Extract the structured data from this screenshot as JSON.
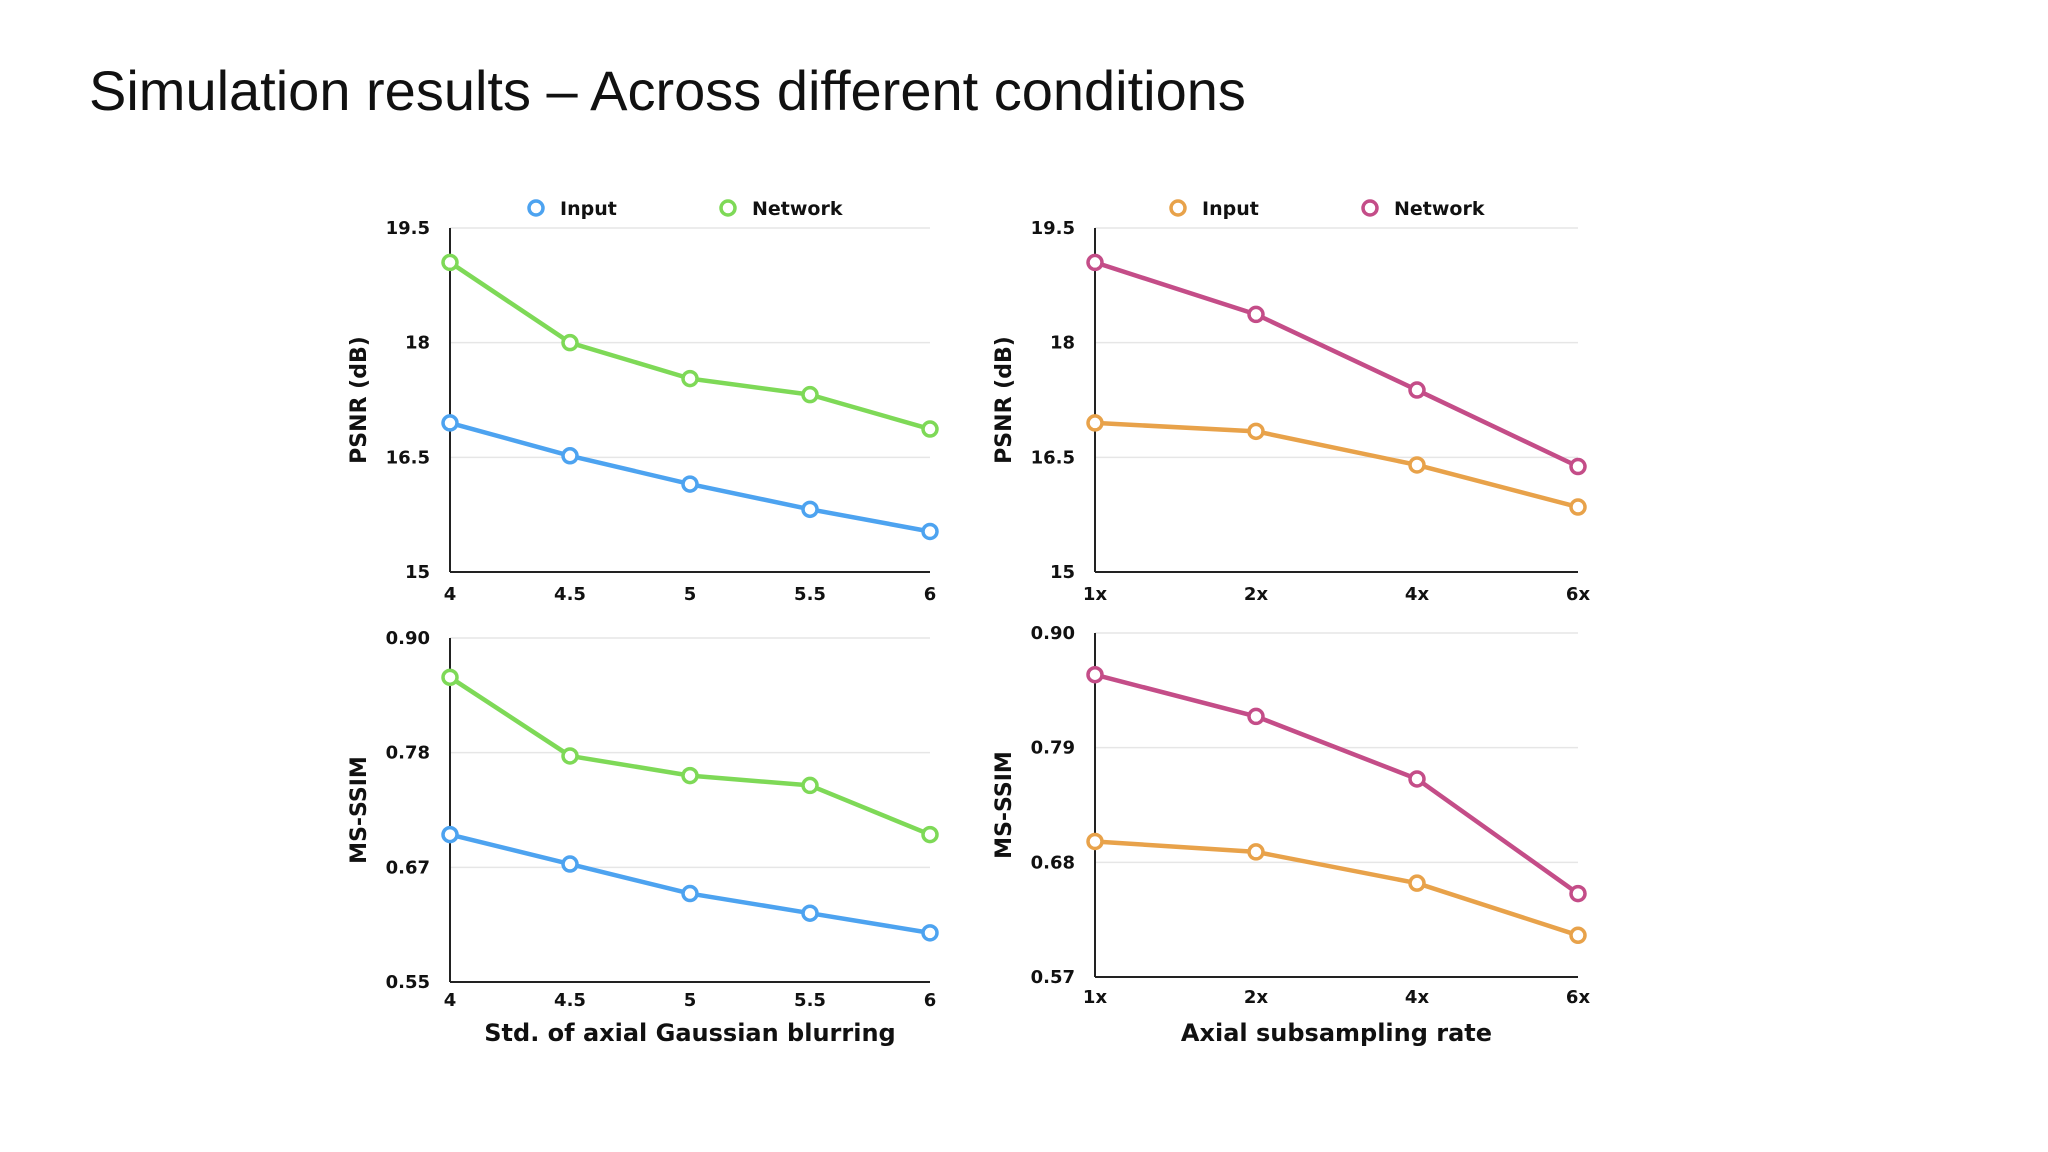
{
  "slide": {
    "title": "Simulation results – Across different conditions"
  },
  "chart_data": [
    {
      "type": "line",
      "id": "psnr-blur",
      "xlabel": "",
      "ylabel": "PSNR (dB)",
      "categories": [
        "4",
        "4.5",
        "5",
        "5.5",
        "6"
      ],
      "yticks": [
        "15",
        "16.5",
        "18",
        "19.5"
      ],
      "ylim": [
        15,
        19.5
      ],
      "grid": true,
      "legend": "top",
      "series": [
        {
          "name": "Input",
          "color": "#4da3f0",
          "values": [
            16.95,
            16.52,
            16.15,
            15.82,
            15.53
          ]
        },
        {
          "name": "Network",
          "color": "#7ed957",
          "values": [
            19.05,
            18.0,
            17.53,
            17.32,
            16.87
          ]
        }
      ]
    },
    {
      "type": "line",
      "id": "psnr-subsampling",
      "xlabel": "",
      "ylabel": "PSNR (dB)",
      "categories": [
        "1x",
        "2x",
        "4x",
        "6x"
      ],
      "yticks": [
        "15",
        "16.5",
        "18",
        "19.5"
      ],
      "ylim": [
        15,
        19.5
      ],
      "grid": true,
      "legend": "top",
      "series": [
        {
          "name": "Input",
          "color": "#e8a24a",
          "values": [
            16.95,
            16.84,
            16.4,
            15.85
          ]
        },
        {
          "name": "Network",
          "color": "#c44d88",
          "values": [
            19.05,
            18.37,
            17.38,
            16.38
          ]
        }
      ]
    },
    {
      "type": "line",
      "id": "msssim-blur",
      "xlabel": "Std. of axial Gaussian blurring",
      "ylabel": "MS-SSIM",
      "categories": [
        "4",
        "4.5",
        "5",
        "5.5",
        "6"
      ],
      "yticks": [
        "0.55",
        "0.67",
        "0.78",
        "0.90"
      ],
      "ylim": [
        0.55,
        0.9
      ],
      "grid": true,
      "series": [
        {
          "name": "Input",
          "color": "#4da3f0",
          "values": [
            0.7,
            0.67,
            0.64,
            0.62,
            0.6
          ]
        },
        {
          "name": "Network",
          "color": "#7ed957",
          "values": [
            0.86,
            0.78,
            0.76,
            0.75,
            0.7
          ]
        }
      ]
    },
    {
      "type": "line",
      "id": "msssim-subsampling",
      "xlabel": "Axial subsampling rate",
      "ylabel": "MS-SSIM",
      "categories": [
        "1x",
        "2x",
        "4x",
        "6x"
      ],
      "yticks": [
        "0.57",
        "0.68",
        "0.79",
        "0.90"
      ],
      "ylim": [
        0.57,
        0.9
      ],
      "grid": true,
      "series": [
        {
          "name": "Input",
          "color": "#e8a24a",
          "values": [
            0.7,
            0.69,
            0.66,
            0.61
          ]
        },
        {
          "name": "Network",
          "color": "#c44d88",
          "values": [
            0.86,
            0.82,
            0.76,
            0.65
          ]
        }
      ]
    }
  ]
}
